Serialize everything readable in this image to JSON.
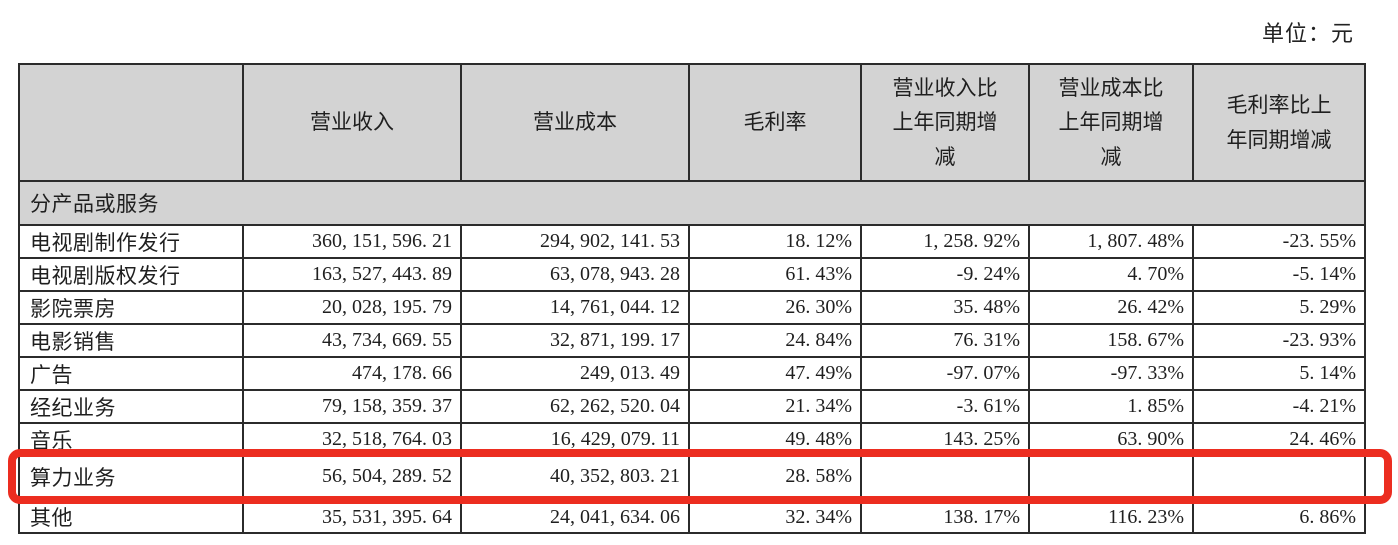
{
  "unit_label": "单位：元",
  "colors": {
    "highlight_red": "#ec2d20",
    "header_gray": "#d3d3d3"
  },
  "table": {
    "headers": [
      "",
      "营业收入",
      "营业成本",
      "毛利率",
      "营业收入比上年同期增减",
      "营业成本比上年同期增减",
      "毛利率比上年同期增减"
    ],
    "section_label": "分产品或服务",
    "rows": [
      {
        "label": "电视剧制作发行",
        "values": [
          "360, 151, 596. 21",
          "294, 902, 141. 53",
          "18. 12%",
          "1, 258. 92%",
          "1, 807. 48%",
          "-23. 55%"
        ]
      },
      {
        "label": "电视剧版权发行",
        "values": [
          "163, 527, 443. 89",
          "63, 078, 943. 28",
          "61. 43%",
          "-9. 24%",
          "4. 70%",
          "-5. 14%"
        ]
      },
      {
        "label": "影院票房",
        "values": [
          "20, 028, 195. 79",
          "14, 761, 044. 12",
          "26. 30%",
          "35. 48%",
          "26. 42%",
          "5. 29%"
        ]
      },
      {
        "label": "电影销售",
        "values": [
          "43, 734, 669. 55",
          "32, 871, 199. 17",
          "24. 84%",
          "76. 31%",
          "158. 67%",
          "-23. 93%"
        ]
      },
      {
        "label": "广告",
        "values": [
          "474, 178. 66",
          "249, 013. 49",
          "47. 49%",
          "-97. 07%",
          "-97. 33%",
          "5. 14%"
        ]
      },
      {
        "label": "经纪业务",
        "values": [
          "79, 158, 359. 37",
          "62, 262, 520. 04",
          "21. 34%",
          "-3. 61%",
          "1. 85%",
          "-4. 21%"
        ]
      },
      {
        "label": "音乐",
        "values": [
          "32, 518, 764. 03",
          "16, 429, 079. 11",
          "49. 48%",
          "143. 25%",
          "63. 90%",
          "24. 46%"
        ]
      },
      {
        "label": "算力业务",
        "highlighted": true,
        "values": [
          "56, 504, 289. 52",
          "40, 352, 803. 21",
          "28. 58%",
          "",
          "",
          ""
        ]
      },
      {
        "label": "其他",
        "values": [
          "35, 531, 395. 64",
          "24, 041, 634. 06",
          "32. 34%",
          "138. 17%",
          "116. 23%",
          "6. 86%"
        ]
      }
    ]
  }
}
